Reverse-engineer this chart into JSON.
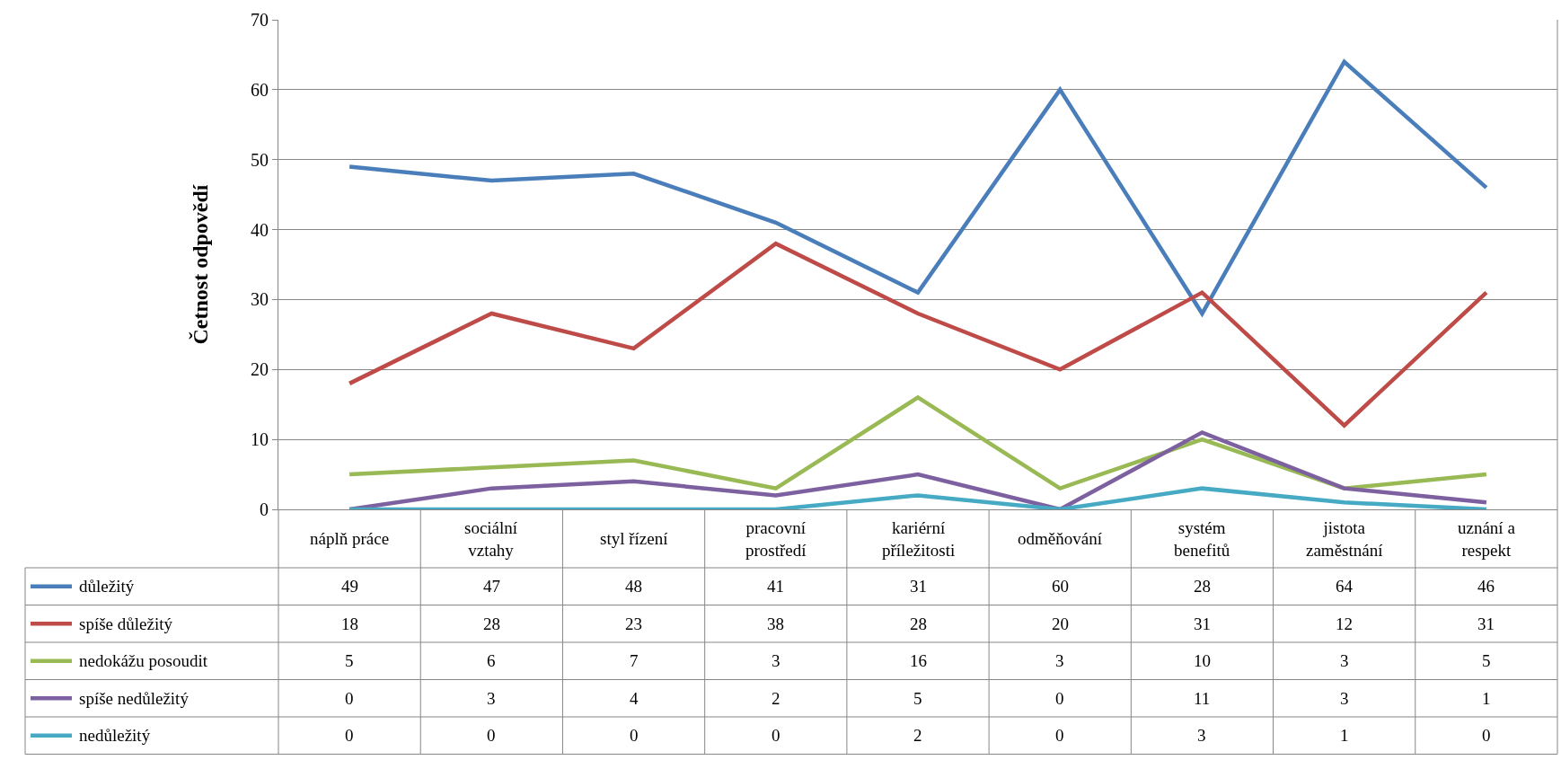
{
  "chart_data": {
    "type": "line",
    "ylabel": "Četnost odpovědí",
    "categories": [
      "náplň práce",
      "sociální\nvztahy",
      "styl řízení",
      "pracovní\nprostředí",
      "kariérní\npříležitosti",
      "odměňování",
      "systém\nbenefitů",
      "jistota\nzaměstnání",
      "uznání a\nrespekt"
    ],
    "series": [
      {
        "name": "důležitý",
        "color": "#4a7ebb",
        "values": [
          49,
          47,
          48,
          41,
          31,
          60,
          28,
          64,
          46
        ]
      },
      {
        "name": "spíše důležitý",
        "color": "#be4b48",
        "values": [
          18,
          28,
          23,
          38,
          28,
          20,
          31,
          12,
          31
        ]
      },
      {
        "name": "nedokážu posoudit",
        "color": "#98b954",
        "values": [
          5,
          6,
          7,
          3,
          16,
          3,
          10,
          3,
          5
        ]
      },
      {
        "name": "spíše nedůležitý",
        "color": "#7d60a0",
        "values": [
          0,
          3,
          4,
          2,
          5,
          0,
          11,
          3,
          1
        ]
      },
      {
        "name": "nedůležitý",
        "color": "#46aac5",
        "values": [
          0,
          0,
          0,
          0,
          2,
          0,
          3,
          1,
          0
        ]
      }
    ],
    "ylim": [
      0,
      70
    ],
    "yticks": [
      0,
      10,
      20,
      30,
      40,
      50,
      60,
      70
    ],
    "grid": "y",
    "legend": "bottom left",
    "data_labels": true,
    "marker": "none",
    "line_style": "solid"
  }
}
